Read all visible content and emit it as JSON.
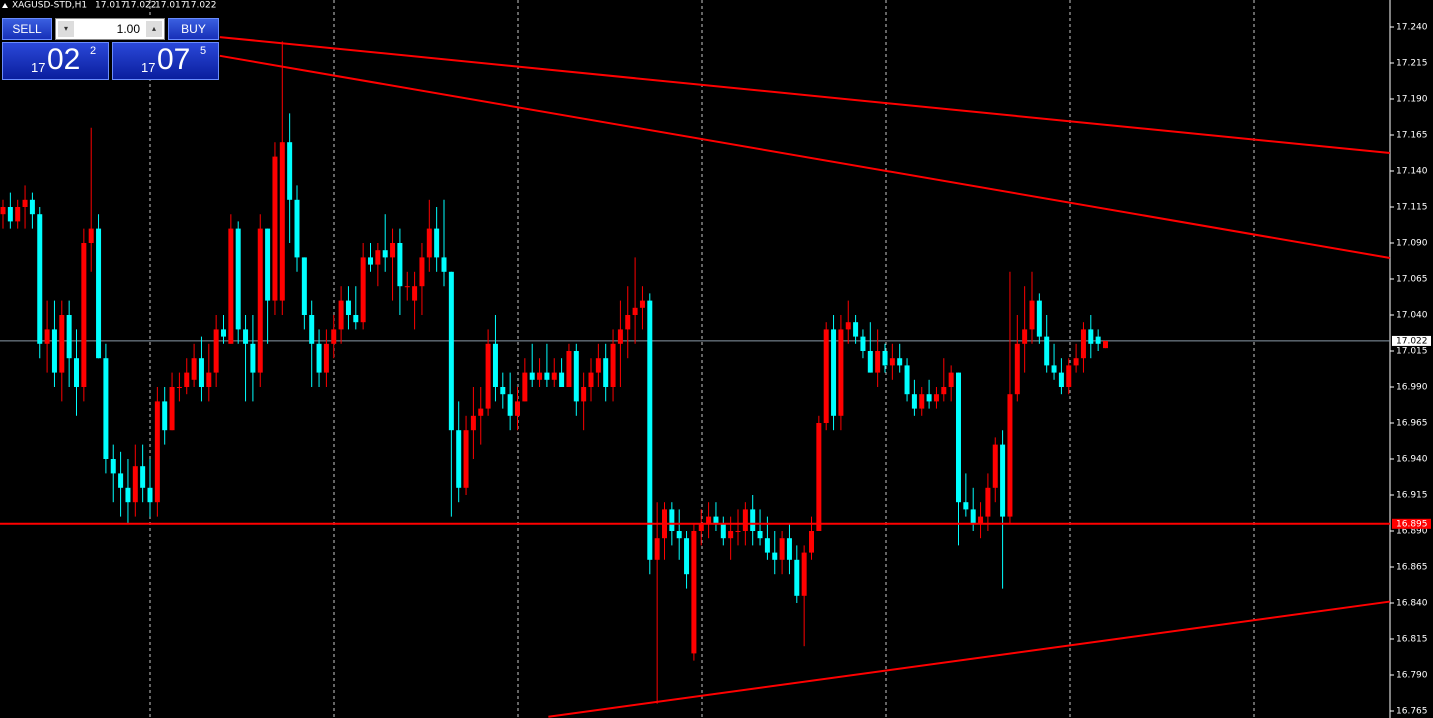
{
  "chart_data": {
    "type": "candlestick",
    "title": "XAGUSD-STD,H1",
    "up_color": "#ff0000",
    "down_color": "#00ffff",
    "ylim": [
      16.765,
      17.24
    ],
    "yticks": [
      {
        "value": 17.24,
        "label": "17.240"
      },
      17.215,
      {
        "value": 17.19,
        "label": "17.190"
      },
      17.165,
      {
        "value": 17.14,
        "label": "17.140"
      },
      17.115,
      {
        "value": 17.09,
        "label": "17.090"
      },
      17.065,
      {
        "value": 17.04,
        "label": "17.040"
      },
      17.015,
      {
        "value": 16.99,
        "label": "16.990"
      },
      16.965,
      {
        "value": 16.94,
        "label": "16.940"
      },
      16.915,
      {
        "value": 16.89,
        "label": "16.890"
      },
      16.865,
      {
        "value": 16.84,
        "label": "16.840"
      },
      16.815,
      {
        "value": 16.79,
        "label": "16.790"
      },
      16.765
    ],
    "current_price": 17.022,
    "support_level": 16.895,
    "trendlines": [
      {
        "x": [
          29.5,
          188.7
        ],
        "y": [
          17.233,
          17.1525
        ]
      },
      {
        "x": [
          29.5,
          188.7
        ],
        "y": [
          17.22,
          17.0796
        ]
      },
      {
        "x": [
          74.2,
          188.7
        ],
        "y": [
          16.761,
          16.841
        ]
      }
    ],
    "ohlc": [
      [
        17.11,
        17.12,
        17.1,
        17.115
      ],
      [
        17.115,
        17.125,
        17.1,
        17.105
      ],
      [
        17.105,
        17.12,
        17.1,
        17.115
      ],
      [
        17.115,
        17.13,
        17.1,
        17.12
      ],
      [
        17.12,
        17.125,
        17.1,
        17.11
      ],
      [
        17.11,
        17.115,
        17.01,
        17.02
      ],
      [
        17.02,
        17.05,
        17.0,
        17.03
      ],
      [
        17.03,
        17.05,
        16.99,
        17.0
      ],
      [
        17.0,
        17.05,
        16.98,
        17.04
      ],
      [
        17.04,
        17.05,
        16.99,
        17.01
      ],
      [
        17.01,
        17.03,
        16.97,
        16.99
      ],
      [
        16.99,
        17.1,
        16.98,
        17.09
      ],
      [
        17.09,
        17.17,
        17.07,
        17.1
      ],
      [
        17.1,
        17.11,
        17.01,
        17.01
      ],
      [
        17.01,
        17.02,
        16.93,
        16.94
      ],
      [
        16.94,
        16.95,
        16.91,
        16.93
      ],
      [
        16.93,
        16.945,
        16.9,
        16.92
      ],
      [
        16.92,
        16.94,
        16.895,
        16.91
      ],
      [
        16.91,
        16.95,
        16.9,
        16.935
      ],
      [
        16.935,
        16.95,
        16.91,
        16.92
      ],
      [
        16.92,
        16.94,
        16.9,
        16.91
      ],
      [
        16.91,
        16.99,
        16.9,
        16.98
      ],
      [
        16.98,
        16.99,
        16.95,
        16.96
      ],
      [
        16.96,
        17.0,
        16.96,
        16.99
      ],
      [
        16.99,
        17.0,
        16.98,
        16.99
      ],
      [
        16.99,
        17.01,
        16.985,
        17.0
      ],
      [
        16.995,
        17.02,
        16.99,
        17.01
      ],
      [
        17.01,
        17.025,
        16.98,
        16.99
      ],
      [
        16.99,
        17.02,
        16.98,
        17.0
      ],
      [
        17.0,
        17.04,
        16.99,
        17.03
      ],
      [
        17.03,
        17.04,
        17.02,
        17.025
      ],
      [
        17.02,
        17.11,
        17.02,
        17.1
      ],
      [
        17.1,
        17.105,
        17.02,
        17.03
      ],
      [
        17.03,
        17.04,
        16.98,
        17.02
      ],
      [
        17.02,
        17.04,
        16.98,
        17.0
      ],
      [
        17.0,
        17.11,
        16.99,
        17.1
      ],
      [
        17.1,
        17.1,
        17.02,
        17.05
      ],
      [
        17.05,
        17.16,
        17.04,
        17.15
      ],
      [
        17.05,
        17.23,
        17.04,
        17.16
      ],
      [
        17.16,
        17.18,
        17.09,
        17.12
      ],
      [
        17.12,
        17.13,
        17.07,
        17.08
      ],
      [
        17.08,
        17.08,
        17.03,
        17.04
      ],
      [
        17.04,
        17.05,
        16.99,
        17.02
      ],
      [
        17.02,
        17.03,
        16.99,
        17.0
      ],
      [
        17.0,
        17.03,
        16.99,
        17.02
      ],
      [
        17.02,
        17.04,
        17.01,
        17.03
      ],
      [
        17.03,
        17.06,
        17.02,
        17.05
      ],
      [
        17.05,
        17.06,
        17.03,
        17.04
      ],
      [
        17.04,
        17.06,
        17.03,
        17.035
      ],
      [
        17.035,
        17.09,
        17.03,
        17.08
      ],
      [
        17.08,
        17.09,
        17.07,
        17.075
      ],
      [
        17.075,
        17.09,
        17.06,
        17.085
      ],
      [
        17.085,
        17.11,
        17.07,
        17.08
      ],
      [
        17.08,
        17.1,
        17.05,
        17.09
      ],
      [
        17.09,
        17.1,
        17.04,
        17.06
      ],
      [
        17.06,
        17.07,
        17.05,
        17.06
      ],
      [
        17.05,
        17.07,
        17.03,
        17.06
      ],
      [
        17.06,
        17.09,
        17.04,
        17.08
      ],
      [
        17.08,
        17.12,
        17.07,
        17.1
      ],
      [
        17.1,
        17.115,
        17.07,
        17.08
      ],
      [
        17.08,
        17.12,
        17.06,
        17.07
      ],
      [
        17.07,
        17.07,
        16.9,
        16.96
      ],
      [
        16.96,
        16.98,
        16.91,
        16.92
      ],
      [
        16.92,
        16.97,
        16.915,
        16.96
      ],
      [
        16.96,
        16.99,
        16.94,
        16.97
      ],
      [
        16.97,
        16.99,
        16.95,
        16.975
      ],
      [
        16.975,
        17.03,
        16.97,
        17.02
      ],
      [
        17.02,
        17.04,
        16.98,
        16.99
      ],
      [
        16.99,
        17.0,
        16.975,
        16.985
      ],
      [
        16.985,
        17.0,
        16.96,
        16.97
      ],
      [
        16.97,
        16.99,
        16.96,
        16.98
      ],
      [
        16.98,
        17.01,
        16.98,
        17.0
      ],
      [
        17.0,
        17.02,
        16.99,
        16.995
      ],
      [
        16.995,
        17.01,
        16.99,
        17.0
      ],
      [
        17.0,
        17.02,
        16.99,
        16.995
      ],
      [
        16.995,
        17.01,
        16.99,
        17.0
      ],
      [
        17.0,
        17.01,
        16.99,
        16.99
      ],
      [
        16.99,
        17.02,
        16.99,
        17.015
      ],
      [
        17.015,
        17.02,
        16.97,
        16.98
      ],
      [
        16.98,
        17.0,
        16.96,
        16.99
      ],
      [
        16.99,
        17.01,
        16.98,
        17.0
      ],
      [
        17.0,
        17.02,
        16.99,
        17.01
      ],
      [
        17.01,
        17.02,
        16.98,
        16.99
      ],
      [
        16.99,
        17.03,
        16.98,
        17.02
      ],
      [
        17.02,
        17.05,
        16.99,
        17.03
      ],
      [
        17.03,
        17.06,
        17.01,
        17.04
      ],
      [
        17.04,
        17.08,
        17.02,
        17.045
      ],
      [
        17.045,
        17.06,
        17.03,
        17.05
      ],
      [
        17.05,
        17.055,
        16.86,
        16.87
      ],
      [
        16.87,
        16.91,
        16.77,
        16.885
      ],
      [
        16.885,
        16.91,
        16.87,
        16.905
      ],
      [
        16.905,
        16.91,
        16.88,
        16.89
      ],
      [
        16.89,
        16.905,
        16.87,
        16.885
      ],
      [
        16.885,
        16.89,
        16.85,
        16.86
      ],
      [
        16.805,
        16.895,
        16.8,
        16.89
      ],
      [
        16.89,
        16.905,
        16.88,
        16.895
      ],
      [
        16.895,
        16.91,
        16.885,
        16.9
      ],
      [
        16.9,
        16.91,
        16.89,
        16.895
      ],
      [
        16.895,
        16.9,
        16.88,
        16.885
      ],
      [
        16.885,
        16.9,
        16.87,
        16.89
      ],
      [
        16.89,
        16.905,
        16.88,
        16.89
      ],
      [
        16.89,
        16.91,
        16.88,
        16.905
      ],
      [
        16.905,
        16.915,
        16.88,
        16.89
      ],
      [
        16.89,
        16.905,
        16.88,
        16.885
      ],
      [
        16.885,
        16.9,
        16.87,
        16.875
      ],
      [
        16.875,
        16.89,
        16.86,
        16.87
      ],
      [
        16.87,
        16.89,
        16.86,
        16.885
      ],
      [
        16.885,
        16.895,
        16.86,
        16.87
      ],
      [
        16.87,
        16.88,
        16.84,
        16.845
      ],
      [
        16.845,
        16.88,
        16.81,
        16.875
      ],
      [
        16.875,
        16.9,
        16.87,
        16.89
      ],
      [
        16.89,
        16.97,
        16.89,
        16.965
      ],
      [
        16.965,
        17.035,
        16.96,
        17.03
      ],
      [
        17.03,
        17.04,
        16.96,
        16.97
      ],
      [
        16.97,
        17.04,
        16.96,
        17.03
      ],
      [
        17.03,
        17.05,
        17.02,
        17.035
      ],
      [
        17.035,
        17.04,
        17.02,
        17.025
      ],
      [
        17.025,
        17.03,
        17.01,
        17.015
      ],
      [
        17.015,
        17.035,
        17.0,
        17.0
      ],
      [
        17.0,
        17.03,
        16.99,
        17.015
      ],
      [
        17.015,
        17.02,
        17.0,
        17.005
      ],
      [
        17.005,
        17.02,
        16.995,
        17.01
      ],
      [
        17.01,
        17.02,
        17.0,
        17.005
      ],
      [
        17.005,
        17.01,
        16.98,
        16.985
      ],
      [
        16.985,
        16.995,
        16.97,
        16.975
      ],
      [
        16.975,
        16.99,
        16.97,
        16.985
      ],
      [
        16.985,
        16.995,
        16.975,
        16.98
      ],
      [
        16.98,
        16.99,
        16.975,
        16.985
      ],
      [
        16.985,
        17.01,
        16.98,
        16.99
      ],
      [
        16.99,
        17.005,
        16.98,
        17.0
      ],
      [
        17.0,
        17.0,
        16.88,
        16.91
      ],
      [
        16.91,
        16.93,
        16.9,
        16.905
      ],
      [
        16.905,
        16.92,
        16.89,
        16.895
      ],
      [
        16.895,
        16.91,
        16.885,
        16.9
      ],
      [
        16.9,
        16.93,
        16.89,
        16.92
      ],
      [
        16.92,
        16.955,
        16.91,
        16.95
      ],
      [
        16.95,
        16.96,
        16.85,
        16.9
      ],
      [
        16.9,
        17.07,
        16.895,
        16.985
      ],
      [
        16.985,
        17.04,
        16.98,
        17.02
      ],
      [
        17.02,
        17.06,
        17.0,
        17.03
      ],
      [
        17.03,
        17.07,
        17.02,
        17.05
      ],
      [
        17.05,
        17.055,
        17.02,
        17.025
      ],
      [
        17.025,
        17.04,
        17.0,
        17.005
      ],
      [
        17.005,
        17.02,
        16.995,
        17.0
      ],
      [
        17.0,
        17.01,
        16.985,
        16.99
      ],
      [
        16.99,
        17.01,
        16.985,
        17.005
      ],
      [
        17.005,
        17.02,
        17.0,
        17.01
      ],
      [
        17.01,
        17.035,
        17.0,
        17.03
      ],
      [
        17.03,
        17.04,
        17.01,
        17.02
      ],
      [
        17.025,
        17.03,
        17.015,
        17.02
      ],
      [
        17.017,
        17.022,
        17.017,
        17.022
      ]
    ]
  },
  "trade_panel": {
    "sell": "SELL",
    "lot": "1.00",
    "buy": "BUY",
    "bid": {
      "big": "17",
      "main": "02",
      "small": "2"
    },
    "ask": {
      "big": "17",
      "main": "07",
      "small": "5"
    }
  }
}
